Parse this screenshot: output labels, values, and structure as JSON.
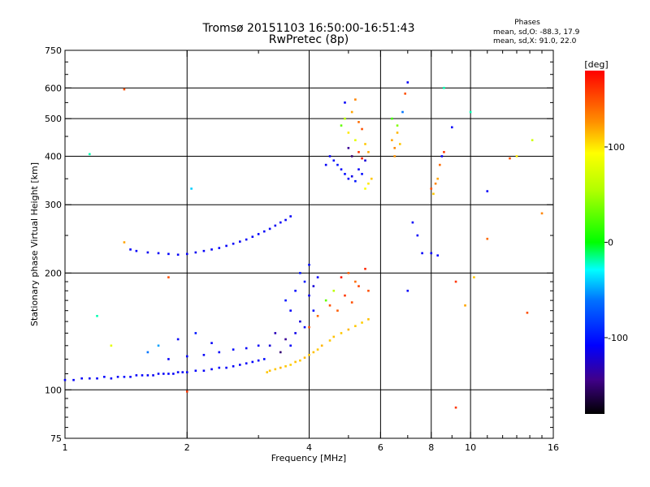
{
  "title": "Tromsø 20151103 16:50:00-16:51:43",
  "subtitle": "RwPretec (8p)",
  "phase_info": {
    "heading": "Phases",
    "line1": "mean, sd,O: -88.3, 17.9",
    "line2": "mean, sd,X:  91.0, 22.0"
  },
  "colorbar": {
    "label": "[deg]",
    "range": [
      -180,
      180
    ],
    "ticks": [
      {
        "value": 100,
        "label": "100"
      },
      {
        "value": 0,
        "label": "0"
      },
      {
        "value": -100,
        "label": "-100"
      }
    ]
  },
  "chart_data": {
    "type": "scatter",
    "title": "Tromsø 20151103 16:50:00-16:51:43",
    "subtitle": "RwPretec (8p)",
    "xlabel": "Frequency [MHz]",
    "ylabel": "Stationary phase Virtual Height [km]",
    "x_scale": "log",
    "y_scale": "log",
    "xlim": [
      1,
      16
    ],
    "ylim": [
      75,
      750
    ],
    "x_ticks": [
      {
        "value": 1,
        "label": "1"
      },
      {
        "value": 2,
        "label": "2"
      },
      {
        "value": 4,
        "label": "4"
      },
      {
        "value": 6,
        "label": "6"
      },
      {
        "value": 8,
        "label": "8"
      },
      {
        "value": 10,
        "label": "10"
      },
      {
        "value": 16,
        "label": "16"
      }
    ],
    "y_ticks": [
      {
        "value": 75,
        "label": "75"
      },
      {
        "value": 100,
        "label": "100"
      },
      {
        "value": 200,
        "label": "200"
      },
      {
        "value": 300,
        "label": "300"
      },
      {
        "value": 400,
        "label": "400"
      },
      {
        "value": 500,
        "label": "500"
      },
      {
        "value": 600,
        "label": "600"
      },
      {
        "value": 750,
        "label": "750"
      }
    ],
    "grid_x": [
      2,
      4,
      6,
      8,
      10
    ],
    "grid_y": [
      100,
      200,
      300,
      400,
      500,
      600
    ],
    "color_label": "[deg]",
    "series": [
      {
        "points": [
          [
            1.0,
            106,
            -110
          ],
          [
            1.05,
            106,
            -110
          ],
          [
            1.1,
            107,
            -110
          ],
          [
            1.15,
            107,
            -112
          ],
          [
            1.2,
            107,
            -110
          ],
          [
            1.25,
            108,
            -108
          ],
          [
            1.3,
            107,
            -110
          ],
          [
            1.35,
            108,
            -110
          ],
          [
            1.4,
            108,
            -105
          ],
          [
            1.45,
            108,
            -110
          ],
          [
            1.5,
            109,
            -110
          ],
          [
            1.55,
            109,
            -108
          ],
          [
            1.6,
            109,
            -110
          ],
          [
            1.65,
            109,
            -112
          ],
          [
            1.7,
            110,
            -110
          ],
          [
            1.75,
            110,
            -110
          ],
          [
            1.8,
            110,
            -108
          ],
          [
            1.85,
            110,
            -110
          ],
          [
            1.9,
            111,
            -110
          ],
          [
            1.95,
            111,
            -110
          ],
          [
            2.0,
            111,
            -110
          ],
          [
            2.1,
            112,
            -108
          ],
          [
            2.2,
            112,
            -110
          ],
          [
            2.3,
            113,
            -110
          ],
          [
            2.4,
            114,
            -108
          ],
          [
            2.5,
            114,
            -110
          ],
          [
            2.6,
            115,
            -110
          ],
          [
            2.7,
            116,
            -110
          ],
          [
            2.8,
            117,
            -110
          ],
          [
            2.9,
            118,
            -108
          ],
          [
            3.0,
            119,
            -110
          ],
          [
            3.1,
            120,
            -105
          ],
          [
            3.15,
            111,
            110
          ],
          [
            3.2,
            112,
            112
          ],
          [
            3.3,
            113,
            110
          ],
          [
            3.4,
            114,
            115
          ],
          [
            3.5,
            115,
            110
          ],
          [
            3.6,
            116,
            108
          ],
          [
            3.7,
            118,
            112
          ],
          [
            3.8,
            119,
            110
          ],
          [
            3.9,
            121,
            115
          ],
          [
            4.0,
            123,
            110
          ],
          [
            4.1,
            125,
            112
          ],
          [
            4.2,
            127,
            110
          ],
          [
            4.3,
            130,
            115
          ],
          [
            4.5,
            134,
            110
          ],
          [
            4.6,
            137,
            112
          ],
          [
            4.8,
            140,
            110
          ],
          [
            5.0,
            143,
            115
          ],
          [
            5.2,
            146,
            110
          ],
          [
            5.4,
            149,
            108
          ],
          [
            5.6,
            152,
            112
          ],
          [
            4.0,
            145,
            150
          ],
          [
            4.2,
            155,
            140
          ],
          [
            4.5,
            165,
            150
          ],
          [
            4.7,
            160,
            145
          ],
          [
            4.4,
            170,
            30
          ],
          [
            4.6,
            180,
            60
          ],
          [
            4.9,
            175,
            160
          ],
          [
            5.1,
            168,
            150
          ],
          [
            5.3,
            185,
            155
          ],
          [
            4.8,
            195,
            170
          ],
          [
            5.0,
            200,
            145
          ],
          [
            5.2,
            190,
            140
          ],
          [
            5.5,
            205,
            165
          ],
          [
            5.6,
            180,
            150
          ],
          [
            1.45,
            230,
            -110
          ],
          [
            1.5,
            228,
            -110
          ],
          [
            1.6,
            226,
            -112
          ],
          [
            1.7,
            225,
            -110
          ],
          [
            1.8,
            224,
            -108
          ],
          [
            1.9,
            223,
            -110
          ],
          [
            2.0,
            224,
            -110
          ],
          [
            2.1,
            226,
            -112
          ],
          [
            2.2,
            228,
            -110
          ],
          [
            2.3,
            230,
            -110
          ],
          [
            2.4,
            232,
            -108
          ],
          [
            2.5,
            235,
            -110
          ],
          [
            2.6,
            238,
            -110
          ],
          [
            2.7,
            241,
            -112
          ],
          [
            2.8,
            244,
            -110
          ],
          [
            2.9,
            248,
            -110
          ],
          [
            3.0,
            252,
            -108
          ],
          [
            3.1,
            256,
            -110
          ],
          [
            3.2,
            260,
            -110
          ],
          [
            3.3,
            265,
            -112
          ],
          [
            3.4,
            270,
            -110
          ],
          [
            3.5,
            274,
            -110
          ],
          [
            3.6,
            280,
            -110
          ],
          [
            3.5,
            170,
            -100
          ],
          [
            3.6,
            160,
            -110
          ],
          [
            3.7,
            180,
            -105
          ],
          [
            3.8,
            150,
            -120
          ],
          [
            3.9,
            190,
            -100
          ],
          [
            4.0,
            175,
            -110
          ],
          [
            4.1,
            160,
            -105
          ],
          [
            4.2,
            195,
            -110
          ],
          [
            3.7,
            140,
            -115
          ],
          [
            3.8,
            200,
            -100
          ],
          [
            3.9,
            145,
            -110
          ],
          [
            4.0,
            210,
            -105
          ],
          [
            4.1,
            185,
            -120
          ],
          [
            3.6,
            130,
            -110
          ],
          [
            3.5,
            135,
            -140
          ],
          [
            3.3,
            140,
            -130
          ],
          [
            3.4,
            125,
            -150
          ],
          [
            3.2,
            130,
            -120
          ],
          [
            3.0,
            130,
            -110
          ],
          [
            2.8,
            128,
            -110
          ],
          [
            2.6,
            127,
            -105
          ],
          [
            2.4,
            125,
            -110
          ],
          [
            2.2,
            123,
            -110
          ],
          [
            2.0,
            122,
            -108
          ],
          [
            1.8,
            120,
            -110
          ],
          [
            1.6,
            125,
            -60
          ],
          [
            1.7,
            130,
            -50
          ],
          [
            1.9,
            135,
            -110
          ],
          [
            2.1,
            140,
            -100
          ],
          [
            2.3,
            132,
            -110
          ],
          [
            4.5,
            400,
            -110
          ],
          [
            4.6,
            390,
            -105
          ],
          [
            4.7,
            380,
            -100
          ],
          [
            4.8,
            370,
            -110
          ],
          [
            4.9,
            360,
            -105
          ],
          [
            5.0,
            350,
            -110
          ],
          [
            5.1,
            355,
            -115
          ],
          [
            5.2,
            345,
            -100
          ],
          [
            5.3,
            370,
            -110
          ],
          [
            5.4,
            360,
            -105
          ],
          [
            5.5,
            390,
            -120
          ],
          [
            4.4,
            380,
            -110
          ],
          [
            5.6,
            340,
            100
          ],
          [
            5.7,
            350,
            110
          ],
          [
            5.5,
            330,
            90
          ],
          [
            4.8,
            480,
            30
          ],
          [
            4.9,
            500,
            60
          ],
          [
            5.0,
            460,
            100
          ],
          [
            5.1,
            520,
            120
          ],
          [
            5.2,
            440,
            80
          ],
          [
            5.3,
            490,
            140
          ],
          [
            5.4,
            470,
            150
          ],
          [
            5.5,
            430,
            110
          ],
          [
            5.6,
            410,
            120
          ],
          [
            5.0,
            420,
            -140
          ],
          [
            5.1,
            400,
            -150
          ],
          [
            5.3,
            410,
            160
          ],
          [
            5.4,
            395,
            170
          ],
          [
            4.9,
            550,
            -110
          ],
          [
            5.2,
            560,
            130
          ],
          [
            6.4,
            440,
            120
          ],
          [
            6.5,
            420,
            130
          ],
          [
            6.6,
            460,
            115
          ],
          [
            6.7,
            430,
            110
          ],
          [
            6.5,
            400,
            125
          ],
          [
            6.6,
            480,
            40
          ],
          [
            6.4,
            500,
            20
          ],
          [
            6.8,
            520,
            -60
          ],
          [
            7.0,
            620,
            -110
          ],
          [
            6.9,
            580,
            150
          ],
          [
            8.0,
            330,
            150
          ],
          [
            8.2,
            340,
            130
          ],
          [
            8.3,
            350,
            120
          ],
          [
            8.1,
            320,
            110
          ],
          [
            8.4,
            380,
            140
          ],
          [
            8.0,
            225,
            -110
          ],
          [
            8.3,
            222,
            -108
          ],
          [
            7.6,
            225,
            -110
          ],
          [
            7.0,
            180,
            -110
          ],
          [
            8.5,
            400,
            -110
          ],
          [
            1.15,
            405,
            -20
          ],
          [
            1.4,
            595,
            150
          ],
          [
            2.05,
            330,
            -40
          ],
          [
            12.5,
            395,
            150
          ],
          [
            13.0,
            400,
            100
          ],
          [
            15.0,
            285,
            130
          ],
          [
            11.0,
            325,
            -110
          ],
          [
            10.0,
            520,
            -20
          ],
          [
            9.0,
            475,
            -110
          ],
          [
            8.6,
            410,
            160
          ],
          [
            1.2,
            155,
            -20
          ],
          [
            1.3,
            130,
            80
          ],
          [
            1.4,
            240,
            120
          ],
          [
            1.8,
            195,
            150
          ],
          [
            2.0,
            99,
            160
          ],
          [
            9.2,
            190,
            160
          ],
          [
            9.7,
            165,
            120
          ],
          [
            10.2,
            195,
            110
          ],
          [
            13.8,
            158,
            150
          ],
          [
            9.2,
            90,
            160
          ],
          [
            11.0,
            245,
            140
          ],
          [
            14.2,
            440,
            70
          ],
          [
            8.6,
            600,
            -20
          ],
          [
            7.4,
            250,
            -110
          ],
          [
            7.2,
            270,
            -110
          ]
        ]
      }
    ]
  }
}
